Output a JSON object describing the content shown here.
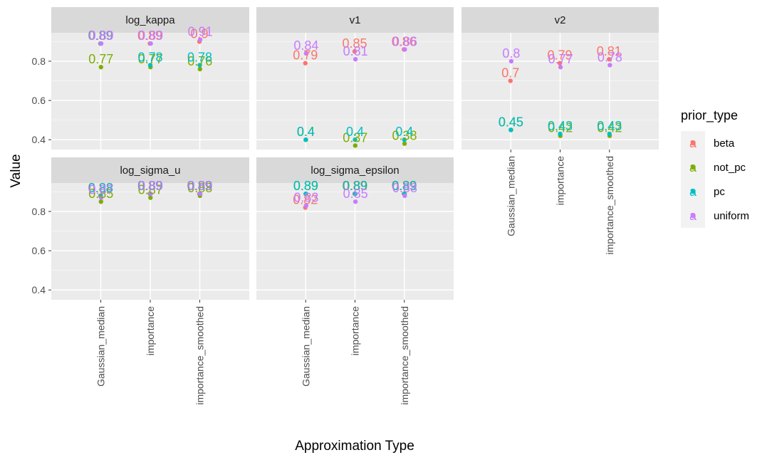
{
  "chart_data": {
    "type": "scatter",
    "xlabel": "Approximation Type",
    "ylabel": "Value",
    "categories": [
      "Gaussian_median",
      "importance",
      "importance_smoothed"
    ],
    "y_ticks": [
      "0.4",
      "0.6",
      "0.8"
    ],
    "ylim": [
      0.35,
      0.945
    ],
    "legend": {
      "title": "prior_type",
      "position": "right",
      "key_glyph": "a",
      "entries": [
        {
          "name": "beta",
          "color": "#F8766D"
        },
        {
          "name": "not_pc",
          "color": "#7CAE00"
        },
        {
          "name": "pc",
          "color": "#00BFC4"
        },
        {
          "name": "uniform",
          "color": "#C77CFF"
        }
      ]
    },
    "panels": [
      {
        "title": "log_kappa",
        "series": [
          {
            "name": "beta",
            "values": [
              0.89,
              0.89,
              0.9
            ],
            "labels": [
              "0.89",
              "0.89",
              "0.9"
            ]
          },
          {
            "name": "not_pc",
            "values": [
              0.77,
              0.77,
              0.76
            ],
            "labels": [
              "0.77",
              "0.77",
              "0.76"
            ]
          },
          {
            "name": "pc",
            "values": [
              0.89,
              0.78,
              0.78
            ],
            "labels": [
              "0.89",
              "0.78",
              "0.78"
            ]
          },
          {
            "name": "uniform",
            "values": [
              0.89,
              0.89,
              0.91
            ],
            "labels": [
              "0.89",
              "0.89",
              "0.91"
            ]
          }
        ]
      },
      {
        "title": "v1",
        "series": [
          {
            "name": "beta",
            "values": [
              0.79,
              0.85,
              0.86
            ],
            "labels": [
              "0.79",
              "0.85",
              "0.86"
            ]
          },
          {
            "name": "not_pc",
            "values": [
              0.4,
              0.37,
              0.38
            ],
            "labels": [
              "0.4",
              "0.37",
              "0.38"
            ]
          },
          {
            "name": "pc",
            "values": [
              0.4,
              0.4,
              0.4
            ],
            "labels": [
              "0.4",
              "0.4",
              "0.4"
            ]
          },
          {
            "name": "uniform",
            "values": [
              0.84,
              0.81,
              0.86
            ],
            "labels": [
              "0.84",
              "0.81",
              "0.86"
            ]
          }
        ]
      },
      {
        "title": "v2",
        "series": [
          {
            "name": "beta",
            "values": [
              0.7,
              0.79,
              0.81
            ],
            "labels": [
              "0.7",
              "0.79",
              "0.81"
            ]
          },
          {
            "name": "not_pc",
            "values": [
              0.45,
              0.42,
              0.42
            ],
            "labels": [
              "0.45",
              "0.42",
              "0.42"
            ]
          },
          {
            "name": "pc",
            "values": [
              0.45,
              0.43,
              0.43
            ],
            "labels": [
              "0.45",
              "0.43",
              "0.43"
            ]
          },
          {
            "name": "uniform",
            "values": [
              0.8,
              0.77,
              0.78
            ],
            "labels": [
              "0.8",
              "0.77",
              "0.78"
            ]
          }
        ]
      },
      {
        "title": "log_sigma_u",
        "series": [
          {
            "name": "beta",
            "values": [
              0.88,
              0.89,
              0.89
            ],
            "labels": [
              "0.88",
              "0.89",
              "0.89"
            ]
          },
          {
            "name": "not_pc",
            "values": [
              0.85,
              0.87,
              0.88
            ],
            "labels": [
              "0.85",
              "0.87",
              "0.88"
            ]
          },
          {
            "name": "pc",
            "values": [
              0.88,
              0.89,
              0.89
            ],
            "labels": [
              "0.88",
              "0.89",
              "0.89"
            ]
          },
          {
            "name": "uniform",
            "values": [
              0.87,
              0.89,
              0.89
            ],
            "labels": [
              "0.87",
              "0.89",
              "0.89"
            ]
          }
        ]
      },
      {
        "title": "log_sigma_epsilon",
        "series": [
          {
            "name": "beta",
            "values": [
              0.82,
              0.89,
              0.89
            ],
            "labels": [
              "0.82",
              "0.89",
              "0.89"
            ]
          },
          {
            "name": "not_pc",
            "values": [
              0.89,
              0.89,
              0.89
            ],
            "labels": [
              "0.89",
              "0.89",
              "0.89"
            ]
          },
          {
            "name": "pc",
            "values": [
              0.89,
              0.89,
              0.89
            ],
            "labels": [
              "0.89",
              "0.89",
              "0.89"
            ]
          },
          {
            "name": "uniform",
            "values": [
              0.83,
              0.85,
              0.88
            ],
            "labels": [
              "0.83",
              "0.85",
              "0.88"
            ]
          }
        ]
      }
    ]
  }
}
